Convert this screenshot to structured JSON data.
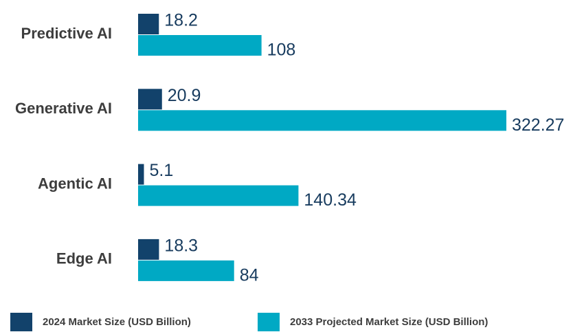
{
  "chart_data": {
    "type": "bar",
    "orientation": "horizontal",
    "categories": [
      "Predictive AI",
      "Generative AI",
      "Agentic AI",
      "Edge AI"
    ],
    "series": [
      {
        "name": "2024 Market Size (USD Billion)",
        "color": "#12426b",
        "values": [
          18.2,
          20.9,
          5.1,
          18.3
        ]
      },
      {
        "name": "2033 Projected Market Size (USD Billion)",
        "color": "#00a9c4",
        "values": [
          108,
          322.27,
          140.34,
          84
        ]
      }
    ],
    "legend": "bottom"
  }
}
